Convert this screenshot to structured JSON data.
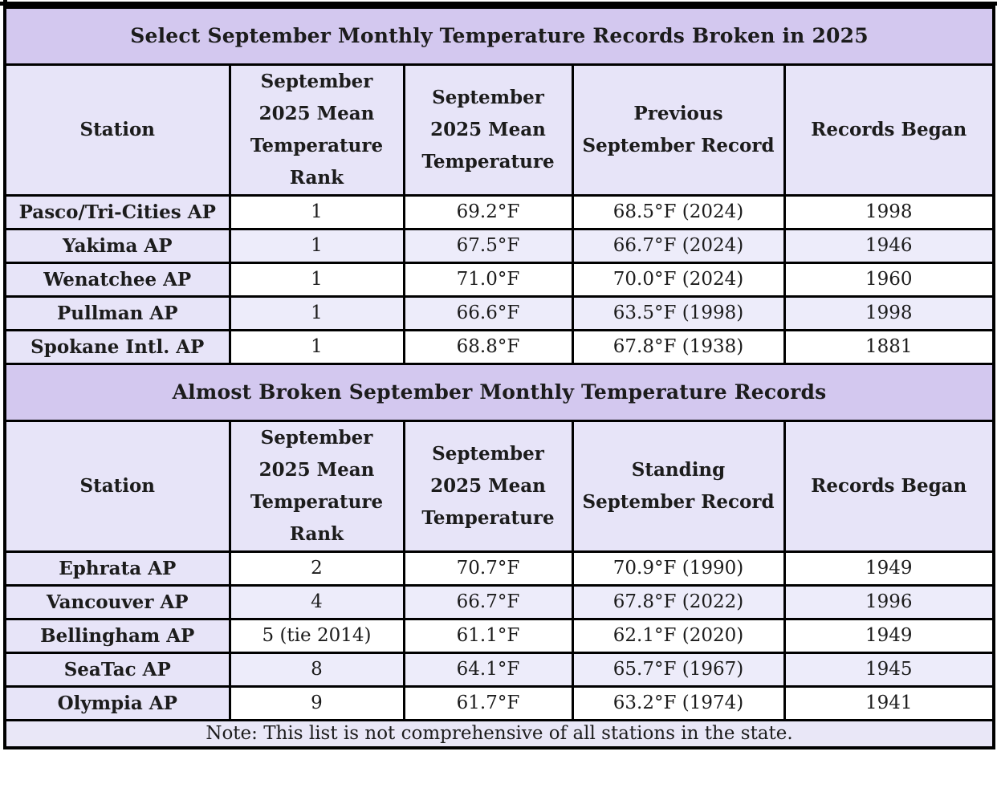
{
  "chart_data": [
    {
      "type": "table",
      "title": "Select September Monthly Temperature Records Broken in 2025",
      "columns": [
        "Station",
        "September\n2025 Mean\nTemperature\nRank",
        "September\n2025 Mean\nTemperature",
        "Previous\nSeptember Record",
        "Records Began"
      ],
      "rows": [
        [
          "Pasco/Tri-Cities AP",
          "1",
          "69.2°F",
          "68.5°F (2024)",
          "1998"
        ],
        [
          "Yakima AP",
          "1",
          "67.5°F",
          "66.7°F (2024)",
          "1946"
        ],
        [
          "Wenatchee AP",
          "1",
          "71.0°F",
          "70.0°F (2024)",
          "1960"
        ],
        [
          "Pullman AP",
          "1",
          "66.6°F",
          "63.5°F (1998)",
          "1998"
        ],
        [
          "Spokane Intl. AP",
          "1",
          "68.8°F",
          "67.8°F (1938)",
          "1881"
        ]
      ]
    },
    {
      "type": "table",
      "title": "Almost Broken September Monthly Temperature Records",
      "columns": [
        "Station",
        "September\n2025 Mean\nTemperature\nRank",
        "September\n2025 Mean\nTemperature",
        "Standing\nSeptember Record",
        "Records Began"
      ],
      "rows": [
        [
          "Ephrata AP",
          "2",
          "70.7°F",
          "70.9°F (1990)",
          "1949"
        ],
        [
          "Vancouver AP",
          "4",
          "66.7°F",
          "67.8°F (2022)",
          "1996"
        ],
        [
          "Bellingham AP",
          "5 (tie 2014)",
          "61.1°F",
          "62.1°F (2020)",
          "1949"
        ],
        [
          "SeaTac AP",
          "8",
          "64.1°F",
          "65.7°F (1967)",
          "1945"
        ],
        [
          "Olympia AP",
          "9",
          "61.7°F",
          "63.2°F (1974)",
          "1941"
        ]
      ]
    }
  ],
  "note": "Note: This list is not comprehensive of all stations in the state.",
  "colors": {
    "banner_bg": "#d3c8ef",
    "header_bg": "#e7e4f8",
    "station_bg": "#e7e4f8",
    "alt_row_bg": "#edecfa",
    "note_bg": "#e9e7f7",
    "border_color": "#000000",
    "text_color": "#1c1c1c",
    "page_bg": "#ffffff"
  }
}
